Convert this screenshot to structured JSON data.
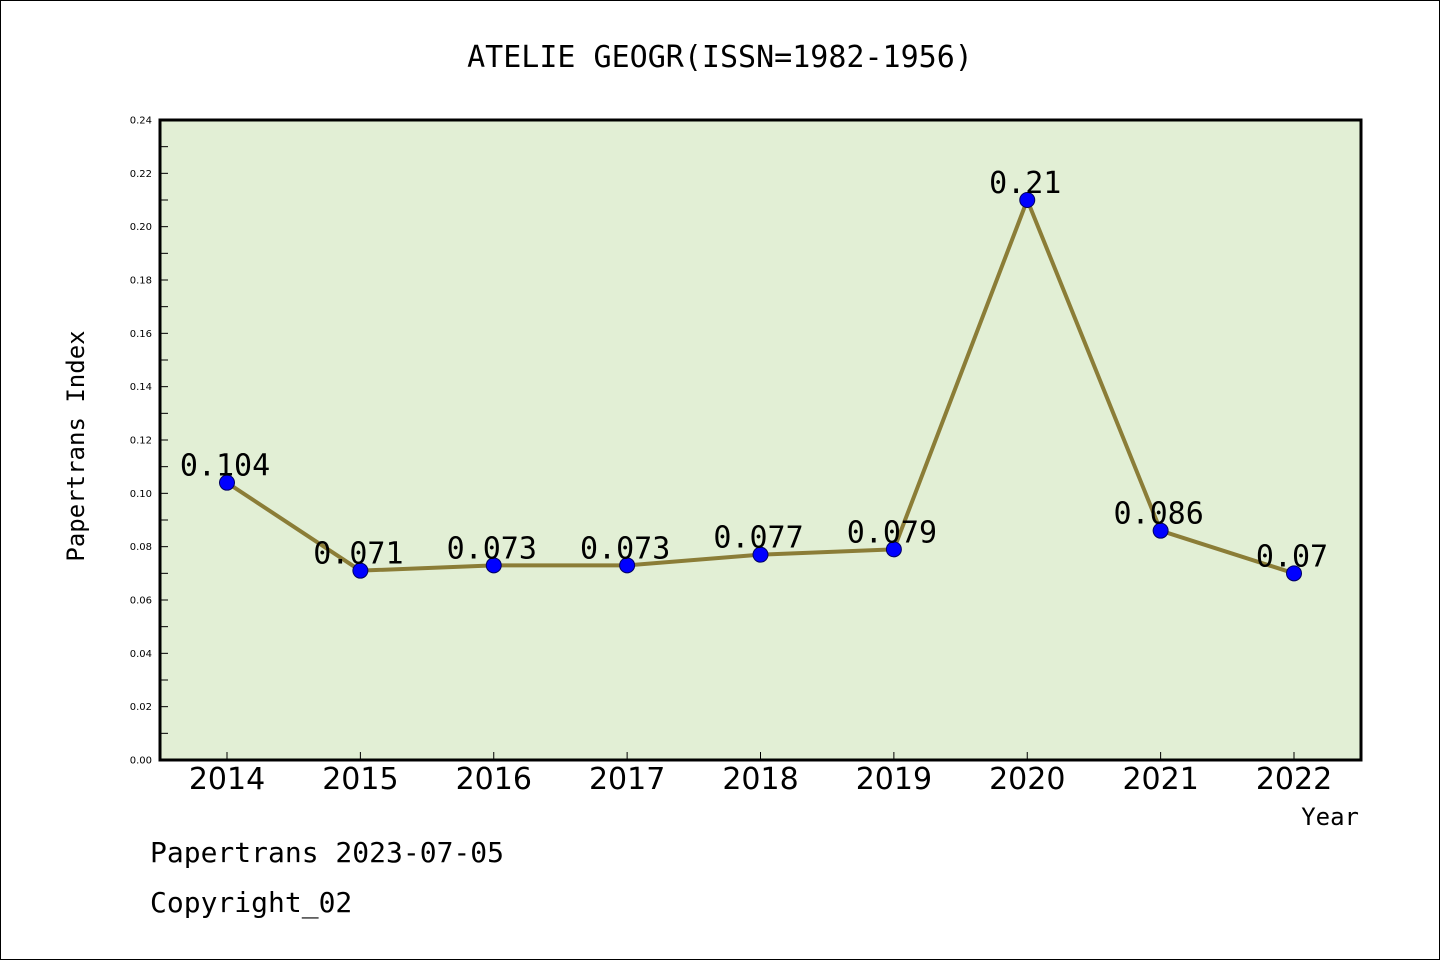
{
  "chart_data": {
    "type": "line",
    "title": "ATELIE GEOGR(ISSN=1982-1956)",
    "xlabel": "Year",
    "ylabel": "Papertrans Index",
    "categories": [
      "2014",
      "2015",
      "2016",
      "2017",
      "2018",
      "2019",
      "2020",
      "2021",
      "2022"
    ],
    "values": [
      0.104,
      0.071,
      0.073,
      0.073,
      0.077,
      0.079,
      0.21,
      0.086,
      0.07
    ],
    "data_labels": [
      "0.104",
      "0.071",
      "0.073",
      "0.073",
      "0.077",
      "0.079",
      "0.21",
      "0.086",
      "0.07"
    ],
    "ylim": [
      0,
      0.24
    ],
    "yticks": [
      "0.00",
      "0.02",
      "0.04",
      "0.06",
      "0.08",
      "0.10",
      "0.12",
      "0.14",
      "0.16",
      "0.18",
      "0.20",
      "0.22",
      "0.24"
    ],
    "grid": false,
    "legend": "none",
    "colors": {
      "plot_background": "#e2efd5",
      "line": "#8b7d37",
      "marker": "#0000ff"
    }
  },
  "footer": {
    "date": "Papertrans 2023-07-05",
    "copyright": "Copyright_02"
  }
}
